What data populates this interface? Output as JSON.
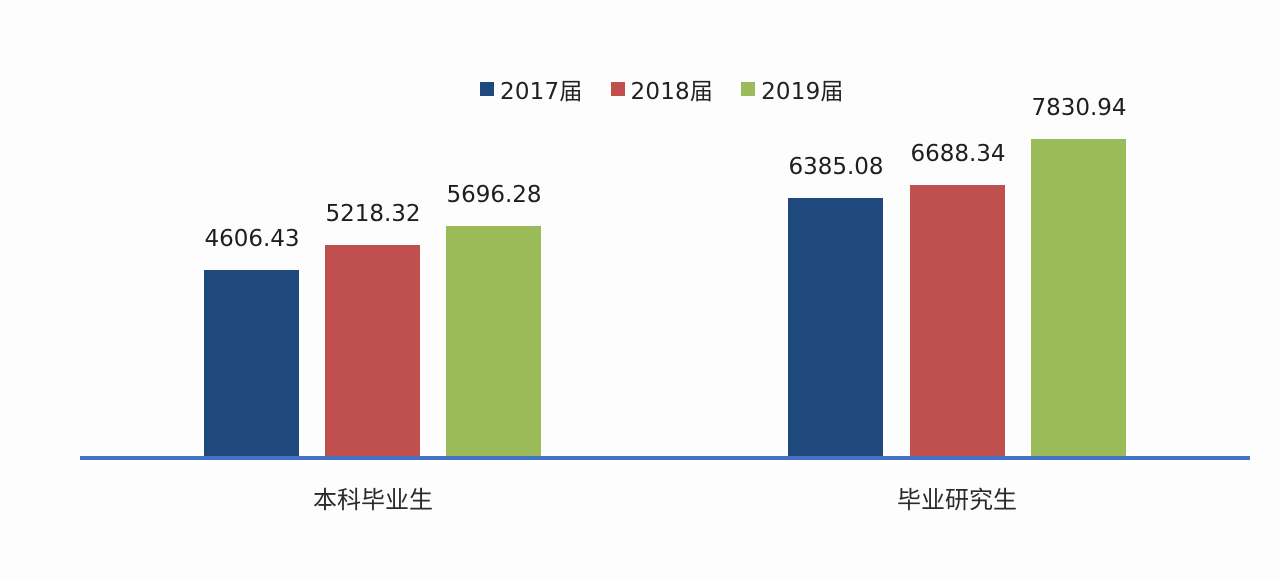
{
  "chart_data": {
    "type": "bar",
    "title": "",
    "xlabel": "",
    "ylabel": "",
    "categories": [
      "本科毕业生",
      "毕业研究生"
    ],
    "series": [
      {
        "name": "2017届",
        "color": "#1f497d",
        "values": [
          4606.43,
          6385.08
        ]
      },
      {
        "name": "2018届",
        "color": "#c0504d",
        "values": [
          5218.32,
          6688.34
        ]
      },
      {
        "name": "2019届",
        "color": "#9bbb59",
        "values": [
          5696.28,
          7830.94
        ]
      }
    ],
    "data_labels": [
      "4606.43",
      "5218.32",
      "5696.28",
      "6385.08",
      "6688.34",
      "7830.94"
    ],
    "ylim": [
      0,
      8500
    ],
    "grid": false,
    "legend_position": "top",
    "axis_color": "#4472c4"
  },
  "legend": {
    "items": [
      {
        "label": "2017届",
        "color": "#1f497d"
      },
      {
        "label": "2018届",
        "color": "#c0504d"
      },
      {
        "label": "2019届",
        "color": "#9bbb59"
      }
    ]
  },
  "categories": {
    "c0": "本科毕业生",
    "c1": "毕业研究生"
  },
  "labels": {
    "b0": "4606.43",
    "b1": "5218.32",
    "b2": "5696.28",
    "b3": "6385.08",
    "b4": "6688.34",
    "b5": "7830.94"
  }
}
